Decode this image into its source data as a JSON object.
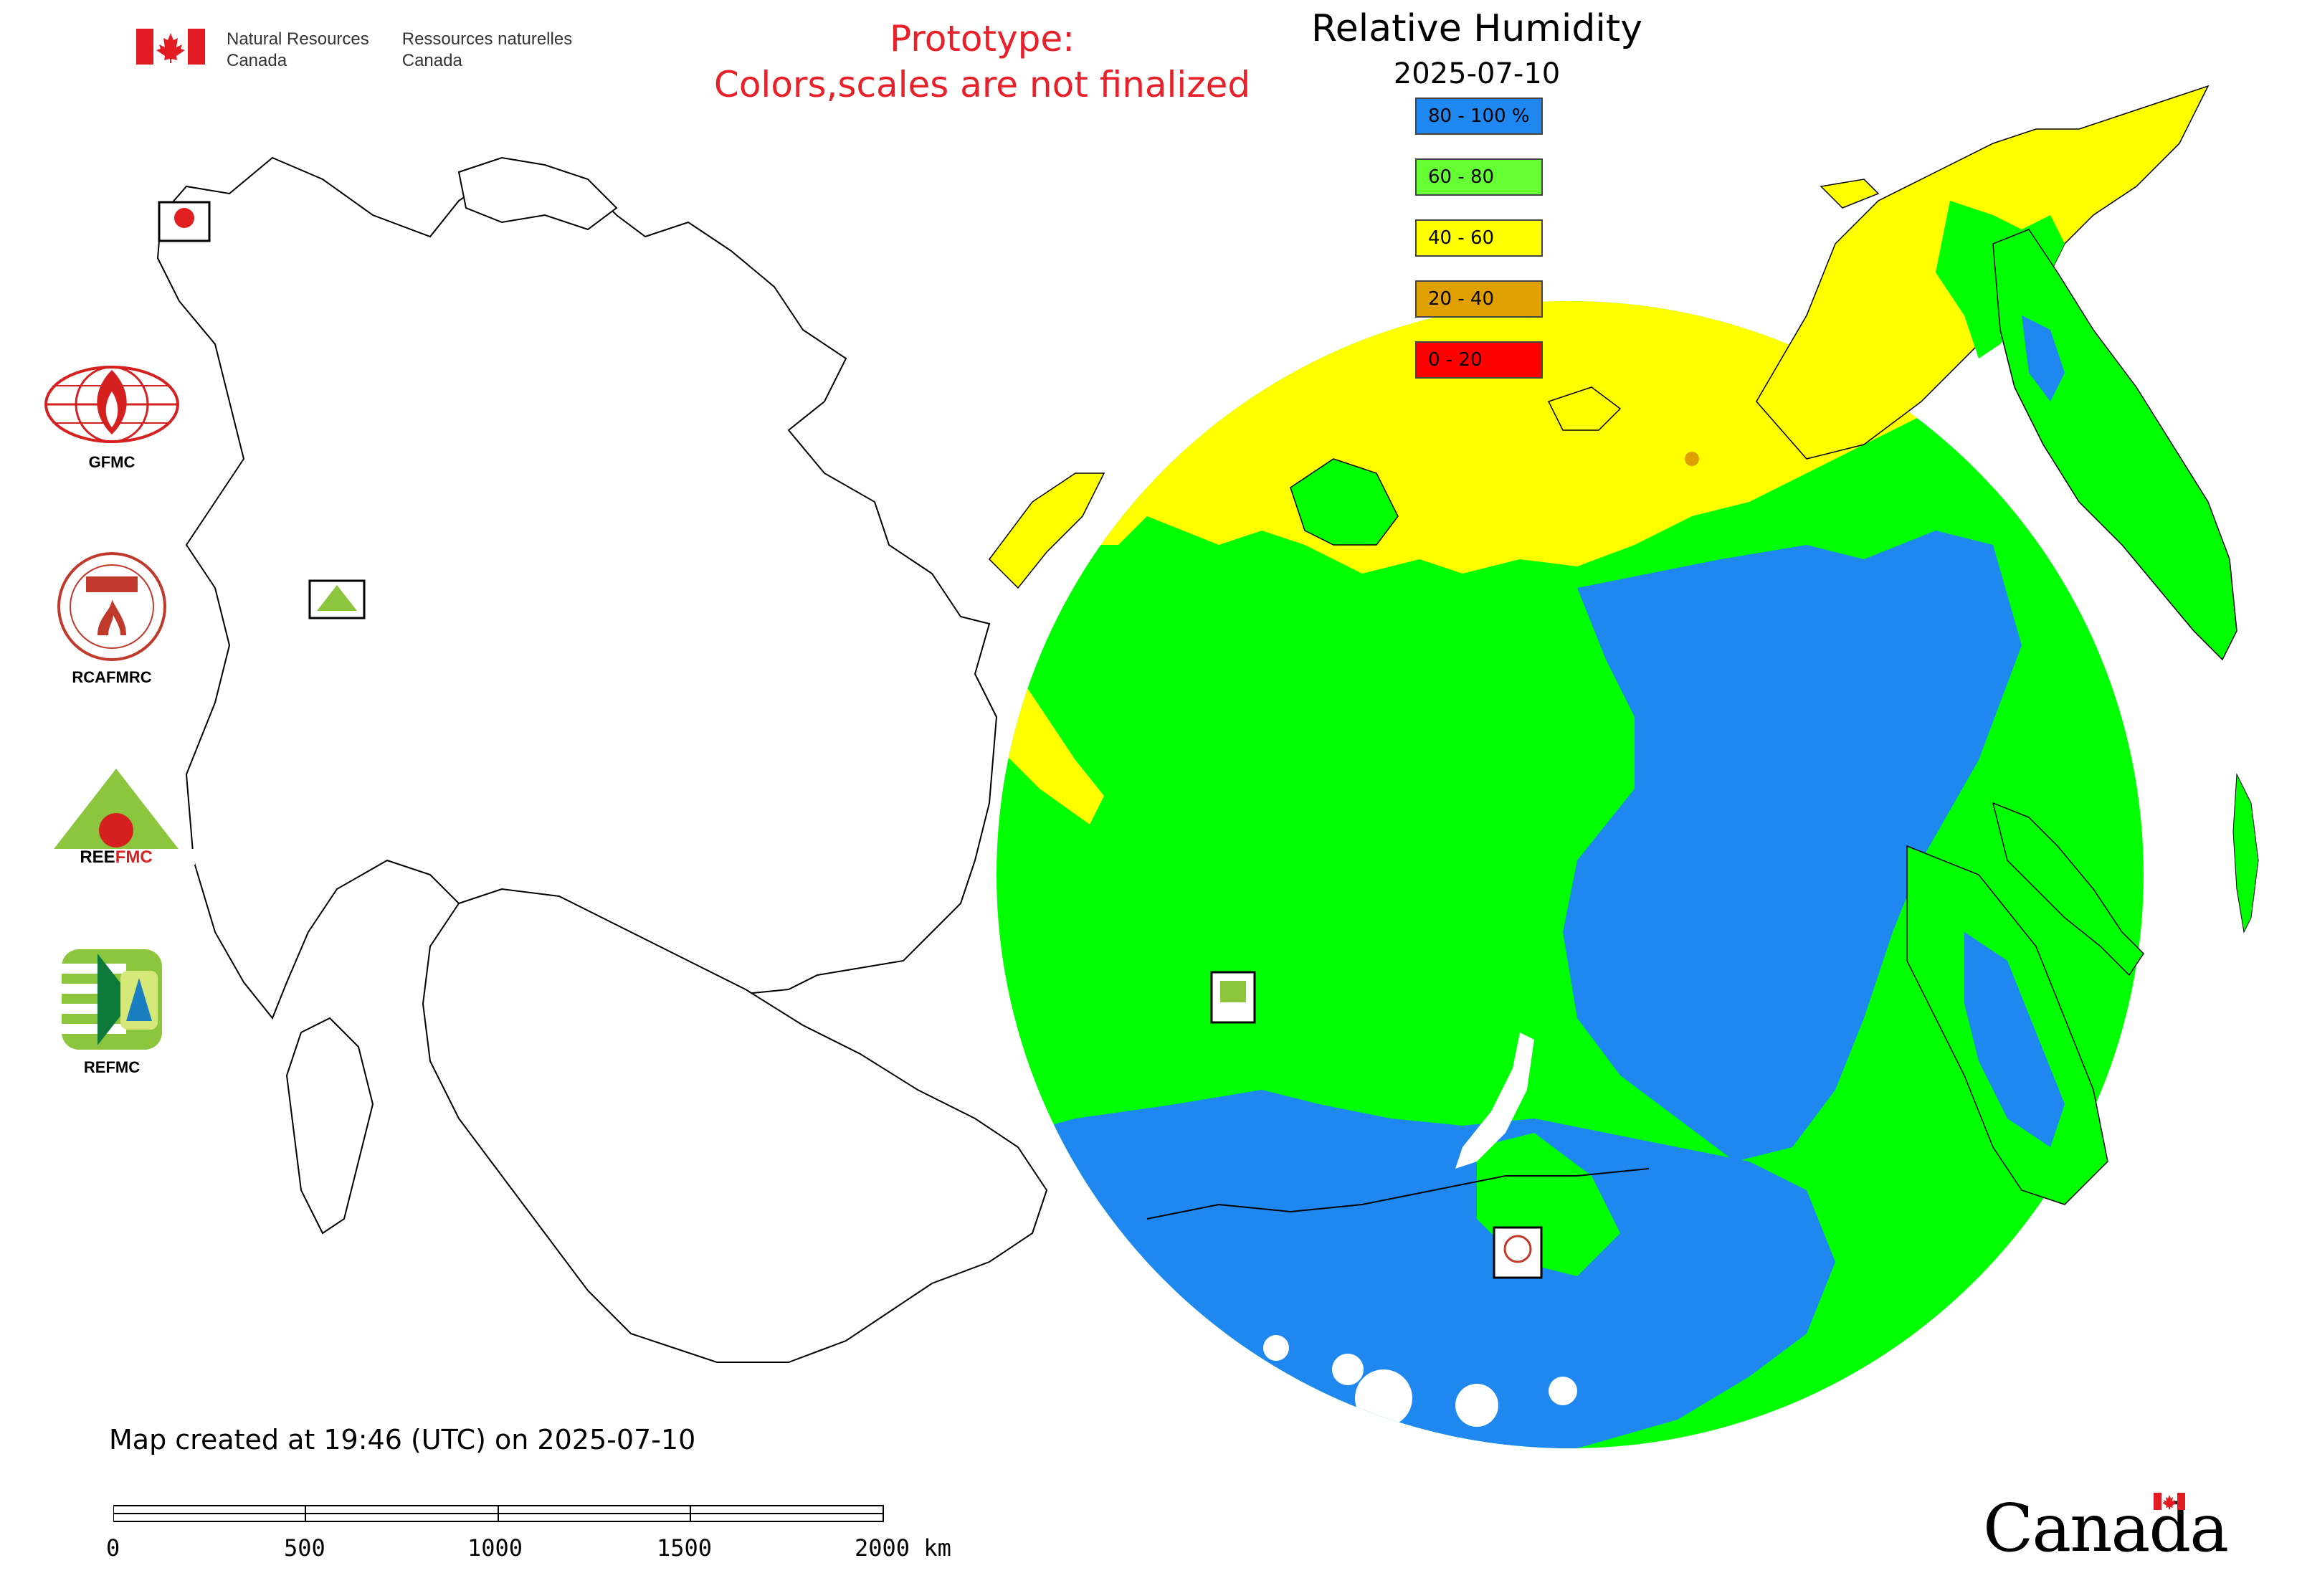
{
  "header": {
    "nrcan_english_line1": "Natural Resources",
    "nrcan_english_line2": "Canada",
    "nrcan_french_line1": "Ressources naturelles",
    "nrcan_french_line2": "Canada",
    "prototype_line1": "Prototype:",
    "prototype_line2": "Colors,scales are not finalized"
  },
  "map": {
    "title": "Relative Humidity",
    "date": "2025-07-10",
    "legend": [
      {
        "label": "80 - 100 %",
        "color": "#1e88f0"
      },
      {
        "label": "60 - 80",
        "color": "#66ff33"
      },
      {
        "label": "40 - 60",
        "color": "#ffff00"
      },
      {
        "label": "20 - 40",
        "color": "#e0a000"
      },
      {
        "label": "0 - 20",
        "color": "#ff0000"
      }
    ],
    "humidity_colors": {
      "very_high": "#1e88f0",
      "high": "#00ff00",
      "medium": "#ffff00",
      "low": "#e0a000",
      "very_low": "#ff0000"
    },
    "station_markers": [
      "GFMC",
      "REEFMC",
      "REFMC",
      "RCAFMRC"
    ]
  },
  "agencies": [
    {
      "label": "GFMC",
      "icon": "gfmc-globe-flame-icon"
    },
    {
      "label": "RCAFMRC",
      "icon": "rcafmrc-seal-icon"
    },
    {
      "label": "",
      "icon": "reefmc-triangle-icon",
      "wordmark": "REEFMC"
    },
    {
      "label": "REFMC",
      "icon": "refmc-sigma-icon"
    }
  ],
  "footer": {
    "created_text": "Map created at 19:46 (UTC) on 2025-07-10",
    "scale_labels": [
      "0",
      "500",
      "1000",
      "1500",
      "2000 km"
    ],
    "canada_wordmark": "Canada"
  }
}
